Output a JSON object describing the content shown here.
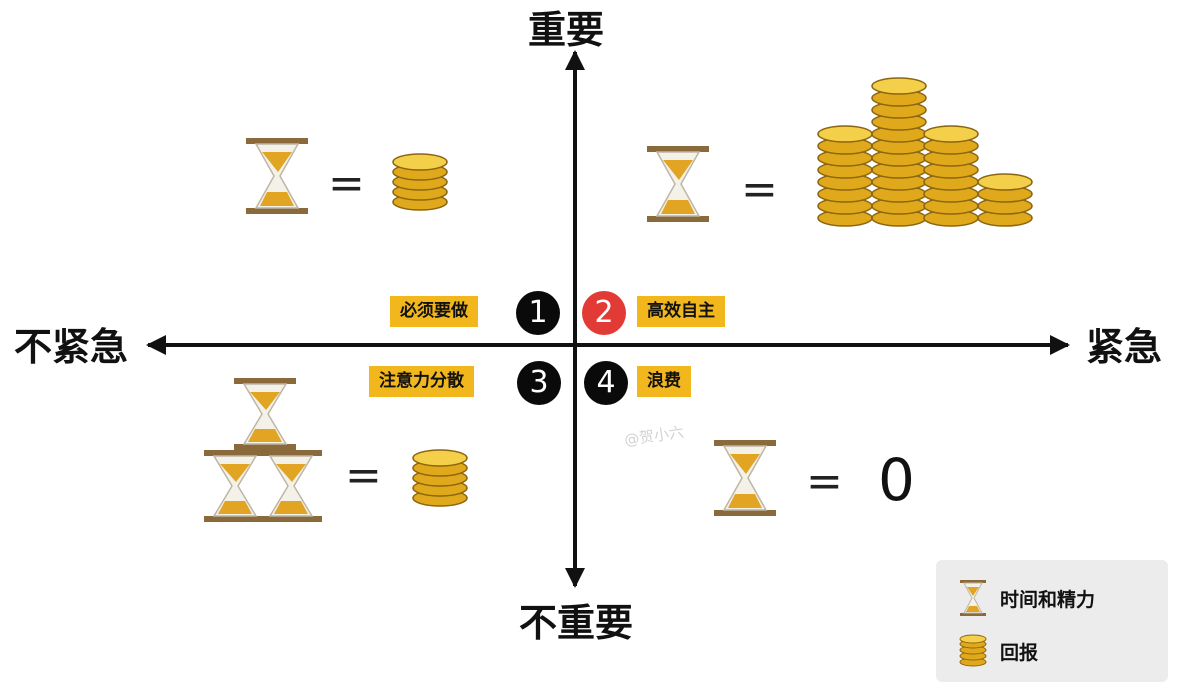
{
  "axes": {
    "top": "重要",
    "bottom": "不重要",
    "left": "不紧急",
    "right": "紧急"
  },
  "quadrants": [
    {
      "number": "1",
      "label": "必须要做"
    },
    {
      "number": "2",
      "label": "高效自主"
    },
    {
      "number": "3",
      "label": "注意力分散"
    },
    {
      "number": "4",
      "label": "浪费"
    }
  ],
  "equations": {
    "sign": "=",
    "q4_reward": "0"
  },
  "watermark": "@贺小六",
  "legend": {
    "time_effort": "时间和精力",
    "reward": "回报"
  },
  "colors": {
    "tag_bg": "#f2b71d",
    "highlight_number": "#e23a35",
    "number_bg": "#0a0a0a",
    "axis": "#111111"
  }
}
